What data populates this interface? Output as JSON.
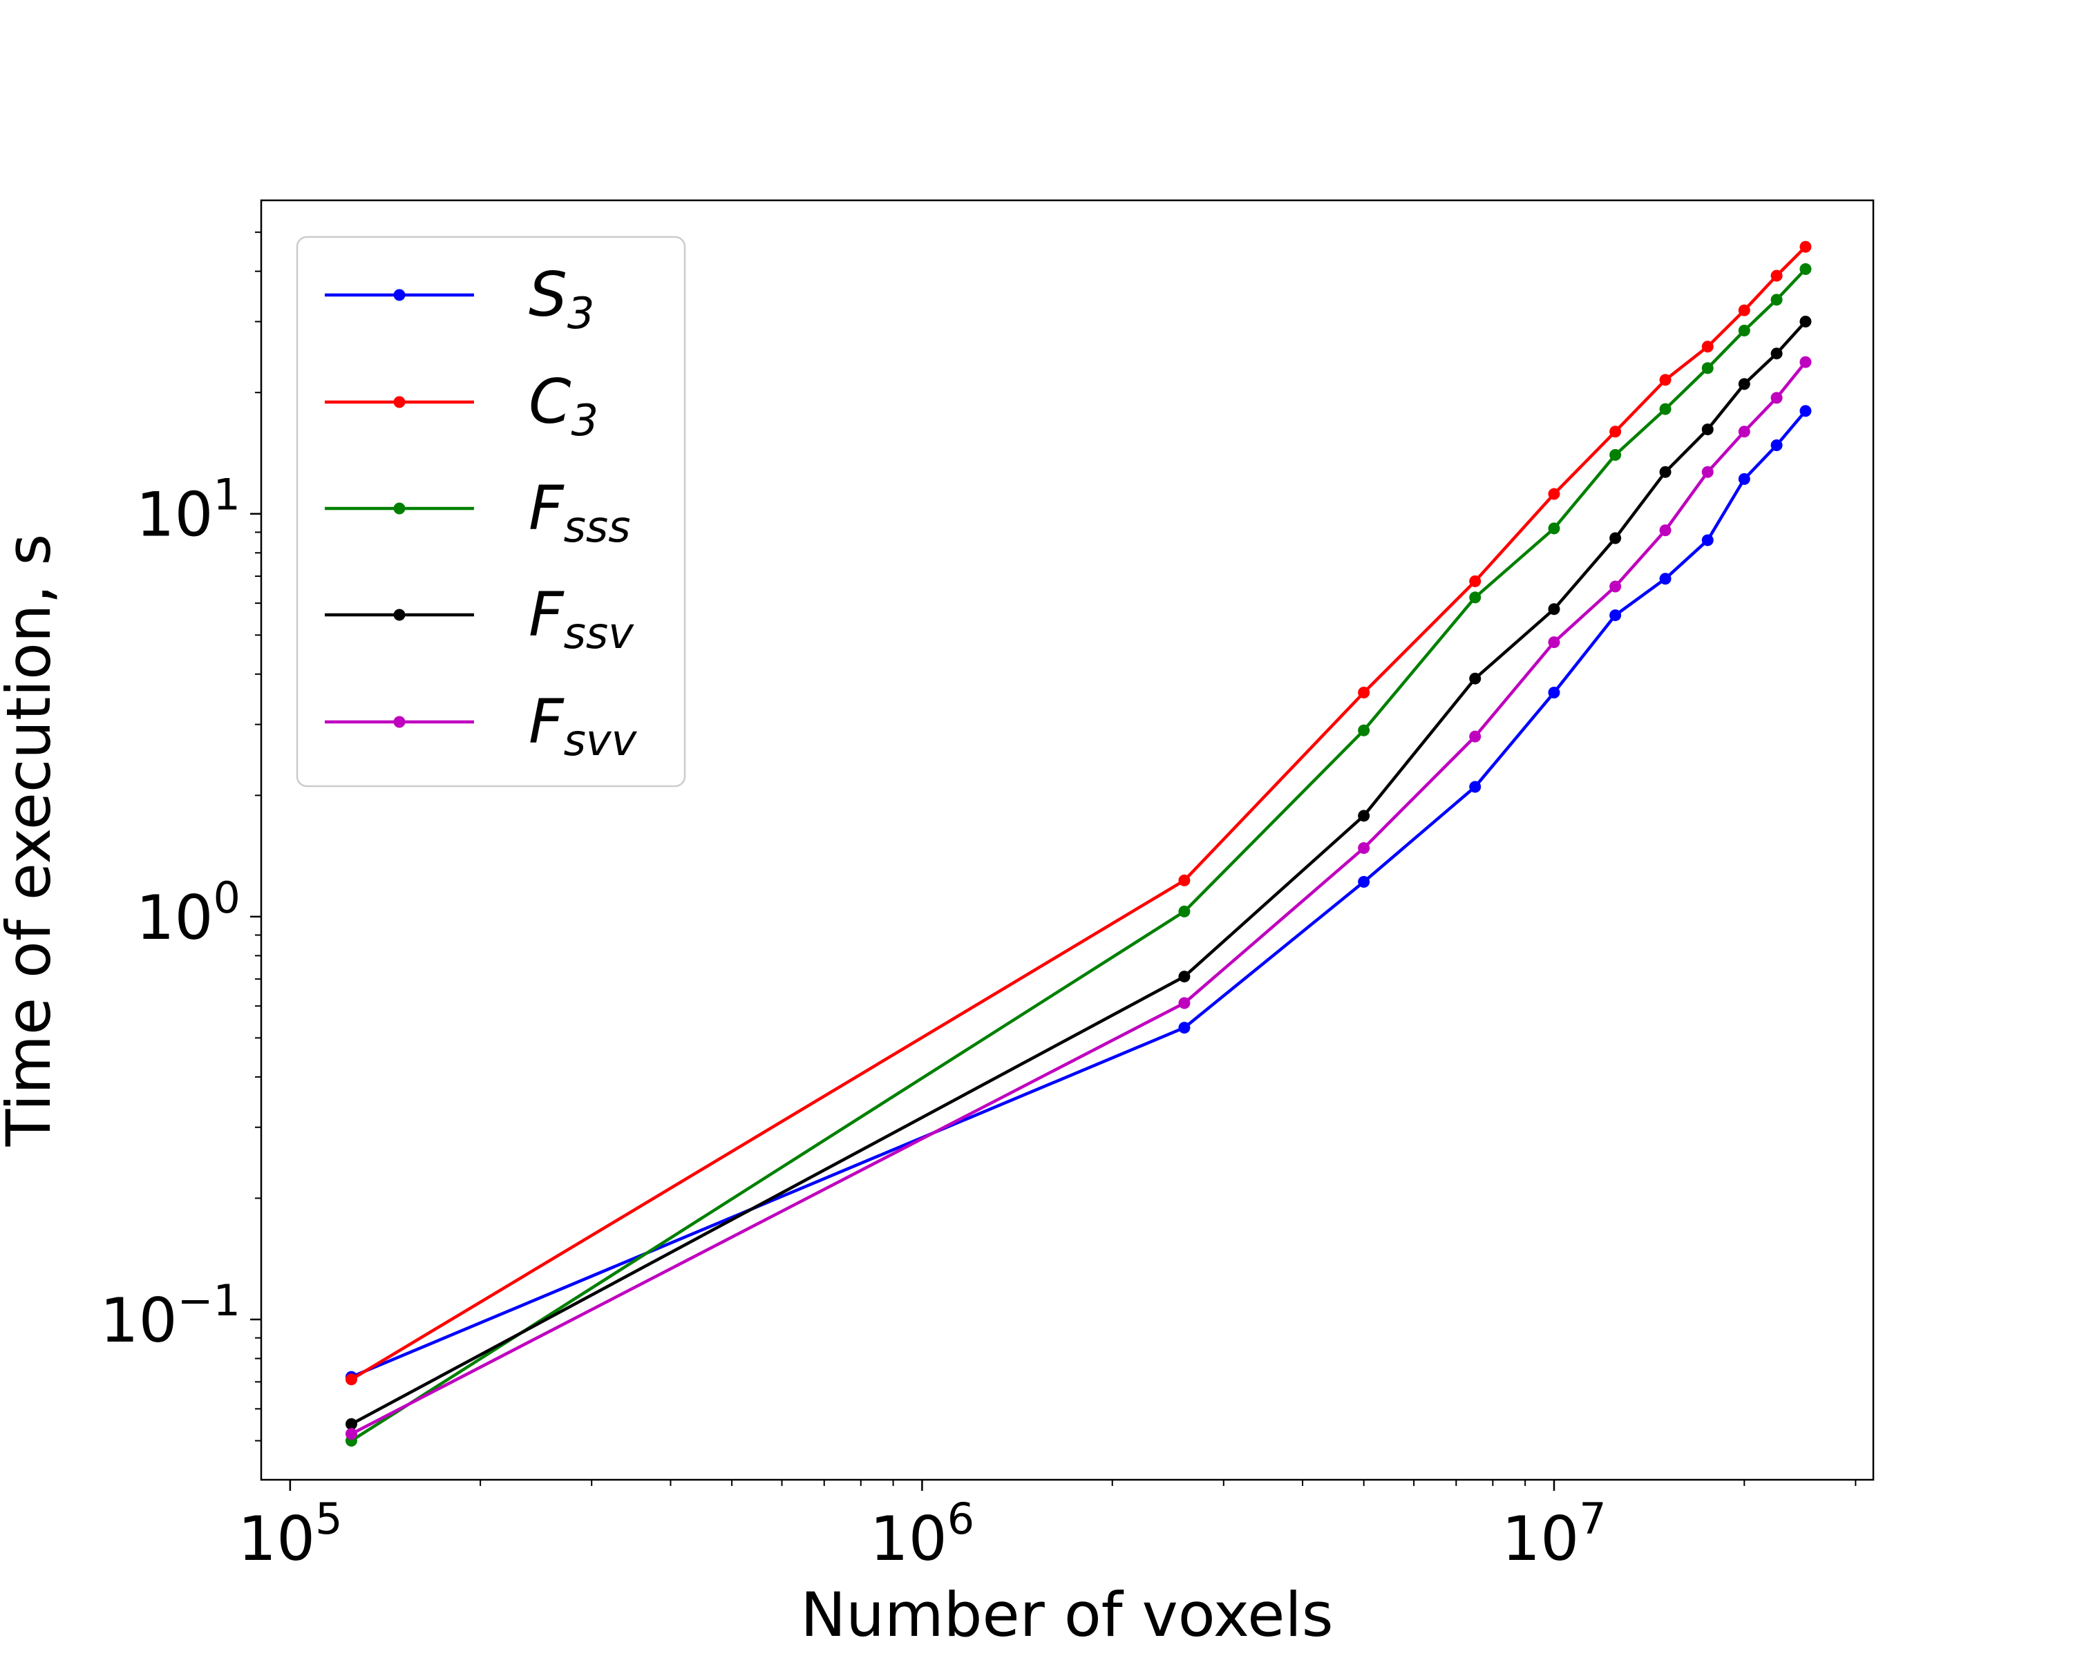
{
  "chart_data": {
    "type": "line",
    "xlabel": "Number of voxels",
    "ylabel": "Time of execution, s",
    "xscale": "log",
    "yscale": "log",
    "xlim": [
      90000,
      32000000
    ],
    "ylim": [
      0.04,
      60
    ],
    "x_ticks": [
      {
        "value": 100000,
        "base": "10",
        "exp": "5"
      },
      {
        "value": 1000000,
        "base": "10",
        "exp": "6"
      },
      {
        "value": 10000000,
        "base": "10",
        "exp": "7"
      }
    ],
    "y_ticks": [
      {
        "value": 0.1,
        "base": "10",
        "exp": "−1"
      },
      {
        "value": 1,
        "base": "10",
        "exp": "0"
      },
      {
        "value": 10,
        "base": "10",
        "exp": "1"
      }
    ],
    "grid": false,
    "legend_position": "top-left",
    "x": [
      125000,
      2600000,
      5000000,
      7500000,
      10000000,
      12500000,
      15000000,
      17500000,
      20000000,
      22500000,
      25000000
    ],
    "series": [
      {
        "name": "S",
        "sub": "3",
        "color": "#0000ff",
        "values": [
          0.072,
          0.53,
          1.22,
          2.1,
          3.6,
          5.6,
          6.9,
          8.6,
          12.2,
          14.8,
          18.0
        ]
      },
      {
        "name": "C",
        "sub": "3",
        "color": "#ff0000",
        "values": [
          0.071,
          1.23,
          3.6,
          6.8,
          11.2,
          16.0,
          21.5,
          26.0,
          32.0,
          39.0,
          46.0
        ]
      },
      {
        "name": "F",
        "sub": "sss",
        "color": "#008000",
        "values": [
          0.05,
          1.03,
          2.9,
          6.2,
          9.2,
          14.0,
          18.2,
          23.0,
          28.5,
          34.0,
          40.5
        ]
      },
      {
        "name": "F",
        "sub": "ssv",
        "color": "#000000",
        "values": [
          0.055,
          0.71,
          1.78,
          3.9,
          5.8,
          8.7,
          12.7,
          16.2,
          21.0,
          25.0,
          30.0
        ]
      },
      {
        "name": "F",
        "sub": "svv",
        "color": "#bf00bf",
        "values": [
          0.052,
          0.61,
          1.48,
          2.8,
          4.8,
          6.6,
          9.1,
          12.7,
          16.0,
          19.4,
          23.8
        ]
      }
    ]
  }
}
